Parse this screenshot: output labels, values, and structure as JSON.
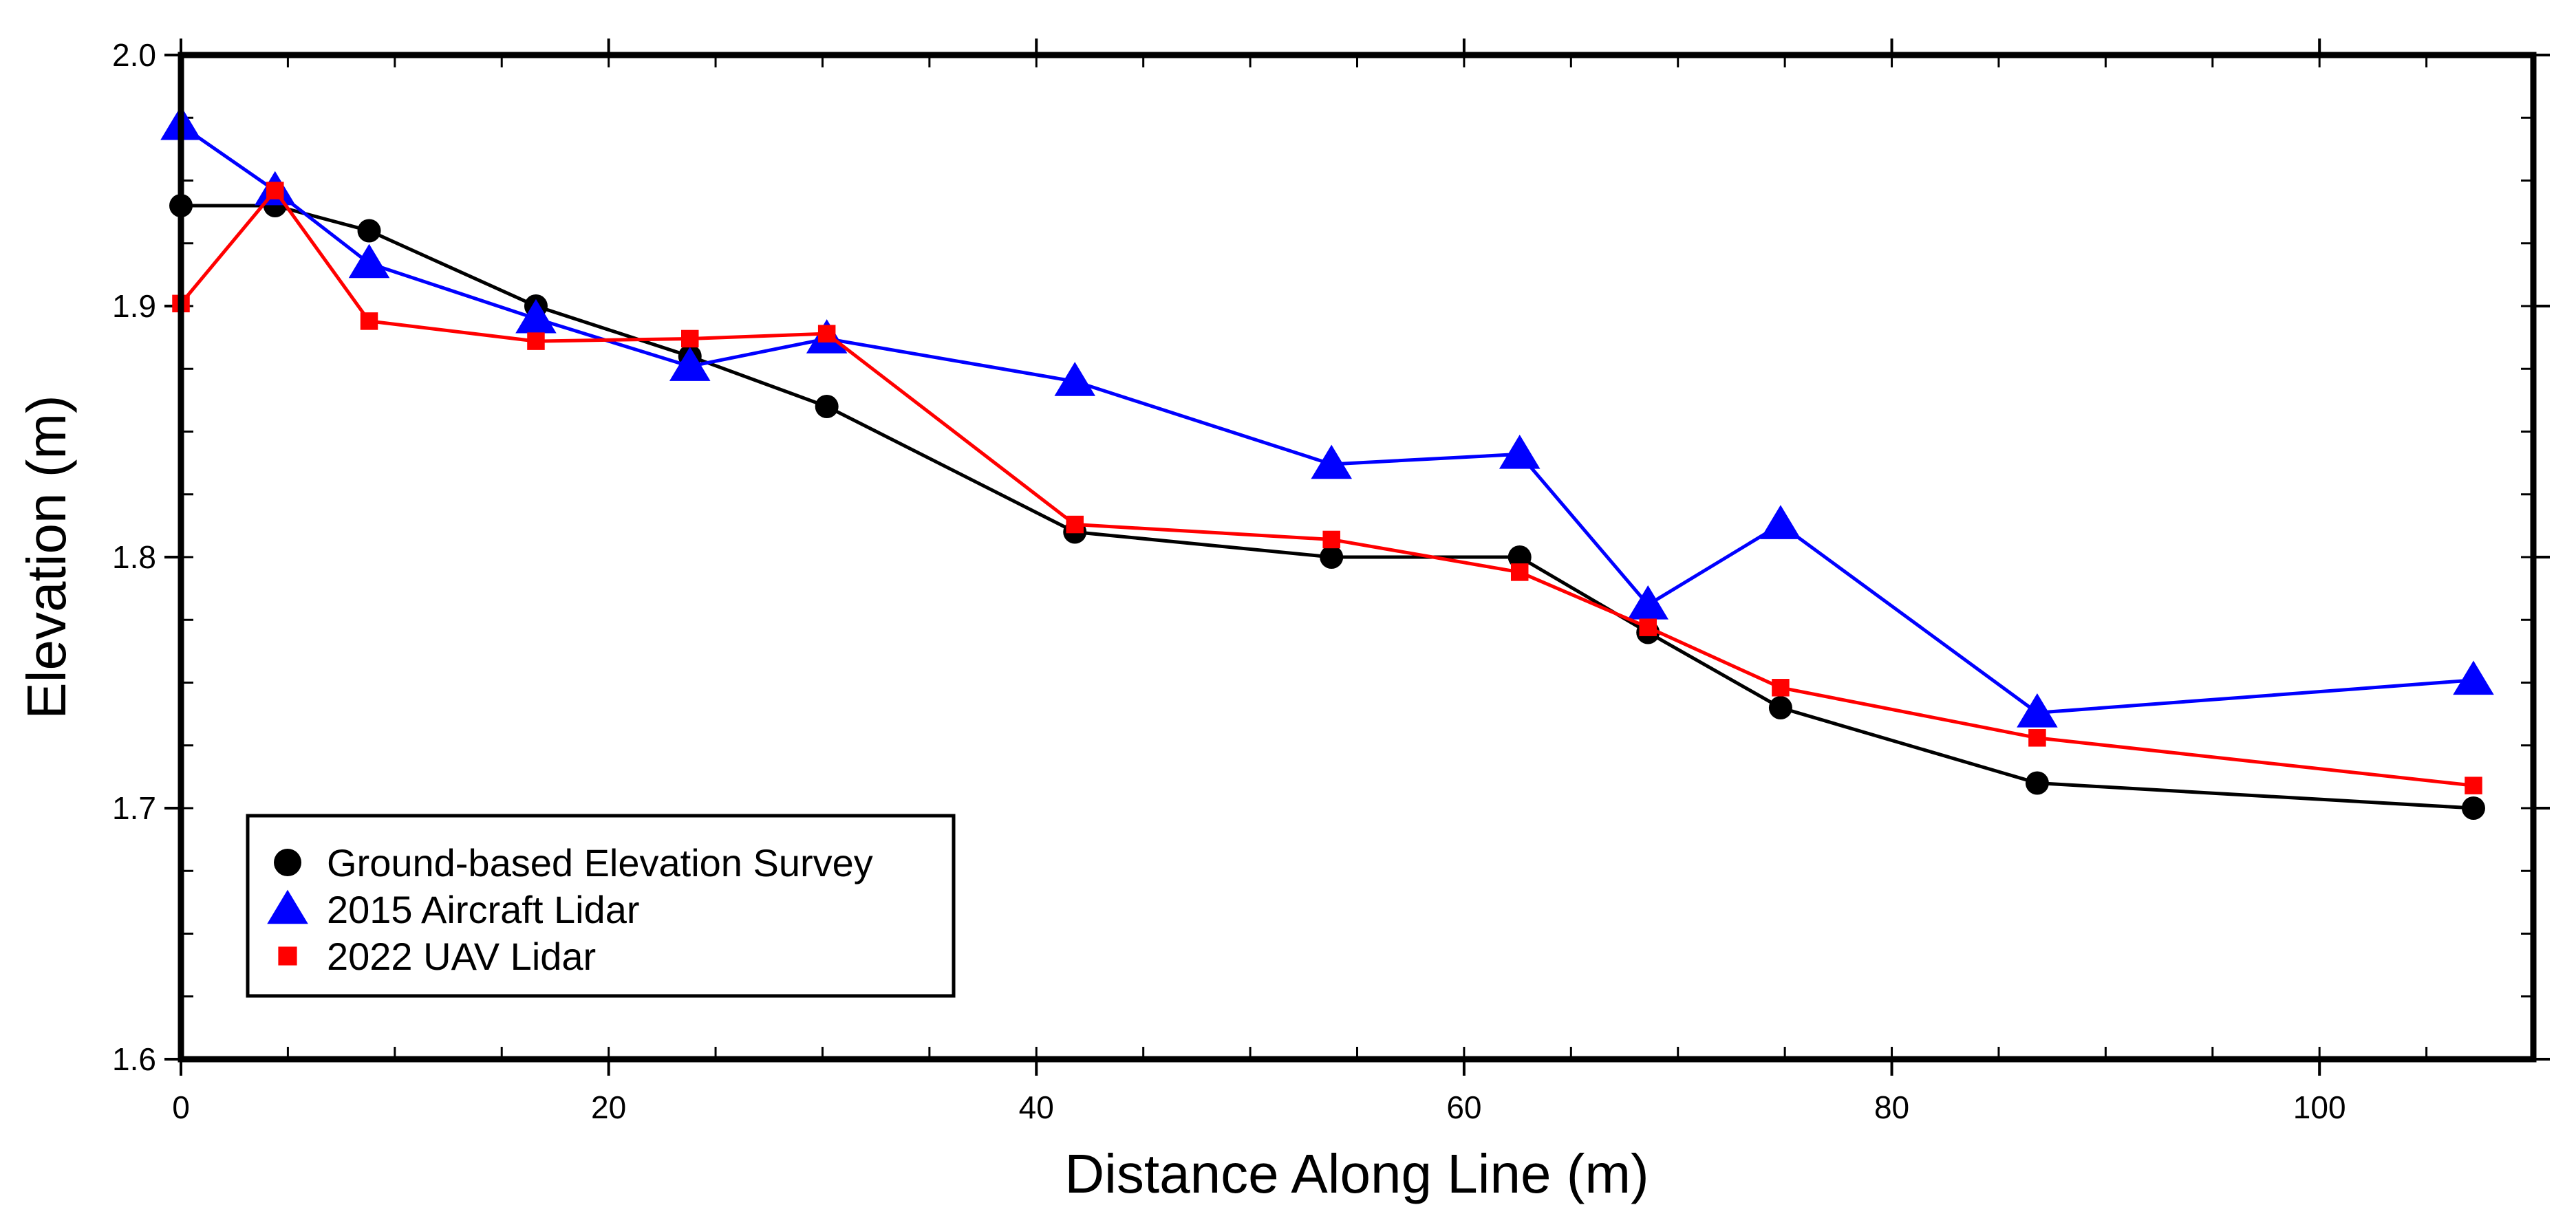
{
  "chart_data": {
    "type": "line",
    "title": "",
    "xlabel": "Distance Along Line (m)",
    "ylabel": "Elevation (m)",
    "xlim": [
      0,
      110
    ],
    "ylim": [
      1.6,
      2.0
    ],
    "x_ticks": [
      "0",
      "20",
      "40",
      "60",
      "80",
      "100"
    ],
    "y_ticks": [
      "1.6",
      "1.7",
      "1.8",
      "1.9",
      "2.0"
    ],
    "grid": false,
    "legend_position": "bottom-left",
    "series": [
      {
        "name": "Ground-based Elevation Survey",
        "marker": "circle",
        "color": "#000000",
        "x": [
          0,
          4.4,
          8.8,
          16.6,
          23.8,
          30.2,
          41.8,
          53.8,
          62.6,
          68.6,
          74.8,
          86.8,
          107.2
        ],
        "y": [
          1.94,
          1.94,
          1.93,
          1.9,
          1.88,
          1.86,
          1.81,
          1.8,
          1.8,
          1.77,
          1.74,
          1.71,
          1.7
        ]
      },
      {
        "name": "2015 Aircraft Lidar",
        "marker": "triangle",
        "color": "#0000ff",
        "x": [
          0,
          4.4,
          8.8,
          16.6,
          23.8,
          30.2,
          41.8,
          53.8,
          62.6,
          68.6,
          74.8,
          86.8,
          107.2
        ],
        "y": [
          1.972,
          1.946,
          1.917,
          1.895,
          1.876,
          1.887,
          1.87,
          1.837,
          1.841,
          1.781,
          1.813,
          1.738,
          1.751
        ]
      },
      {
        "name": "2022 UAV Lidar",
        "marker": "square",
        "color": "#ff0000",
        "x": [
          0,
          4.4,
          8.8,
          16.6,
          23.8,
          30.2,
          41.8,
          53.8,
          62.6,
          68.6,
          74.8,
          86.8,
          107.2
        ],
        "y": [
          1.901,
          1.946,
          1.894,
          1.886,
          1.887,
          1.889,
          1.813,
          1.807,
          1.794,
          1.772,
          1.748,
          1.728,
          1.709
        ]
      }
    ]
  }
}
